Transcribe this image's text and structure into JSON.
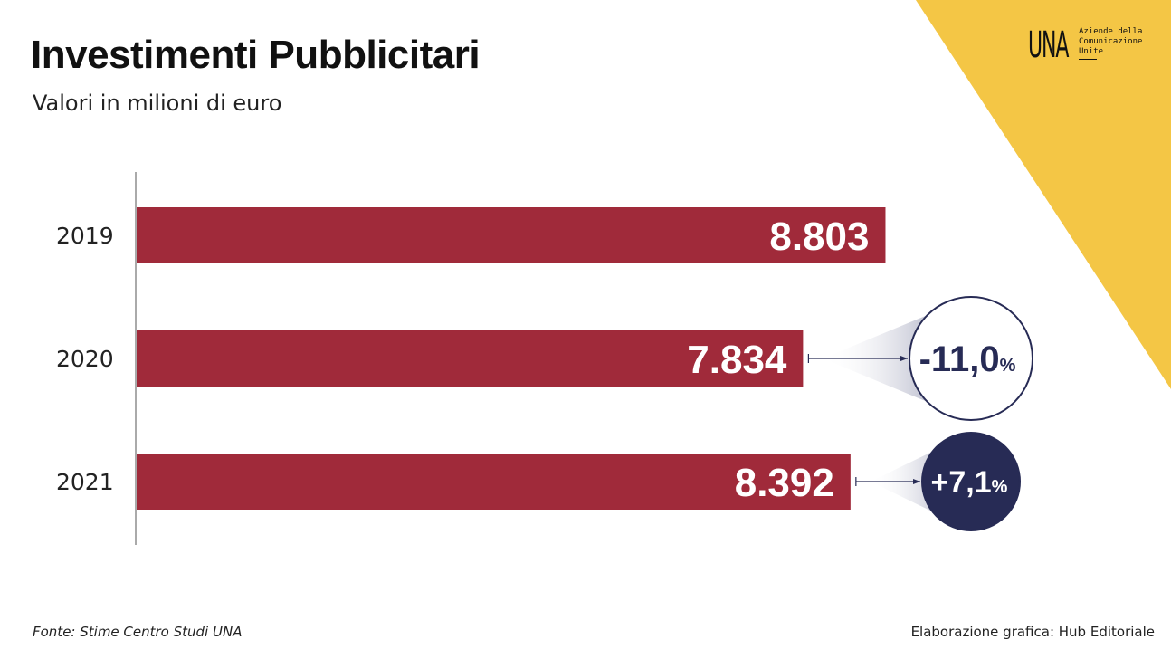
{
  "header": {
    "title": "Investimenti Pubblicitari",
    "subtitle": "Valori in milioni di euro"
  },
  "brand": {
    "mark": "UNA",
    "text_line1": "Aziende della",
    "text_line2": "Comunicazione",
    "text_line3": "Unite"
  },
  "footer": {
    "source": "Fonte: Stime Centro Studi UNA",
    "credit": "Elaborazione grafica: Hub Editoriale"
  },
  "colors": {
    "bar": "#a02a3a",
    "accent_yellow": "#f4c645",
    "navy": "#272b55"
  },
  "chart_data": {
    "type": "bar",
    "orientation": "horizontal",
    "categories": [
      "2019",
      "2020",
      "2021"
    ],
    "values": [
      8803,
      7834,
      8392
    ],
    "value_labels": [
      "8.803",
      "7.834",
      "8.392"
    ],
    "changes": [
      {
        "category": "2020",
        "label": "-11,0",
        "unit": "%",
        "style": "outline"
      },
      {
        "category": "2021",
        "label": "+7,1",
        "unit": "%",
        "style": "filled"
      }
    ],
    "xlim": [
      0,
      10000
    ],
    "grid": false,
    "legend": "none"
  }
}
